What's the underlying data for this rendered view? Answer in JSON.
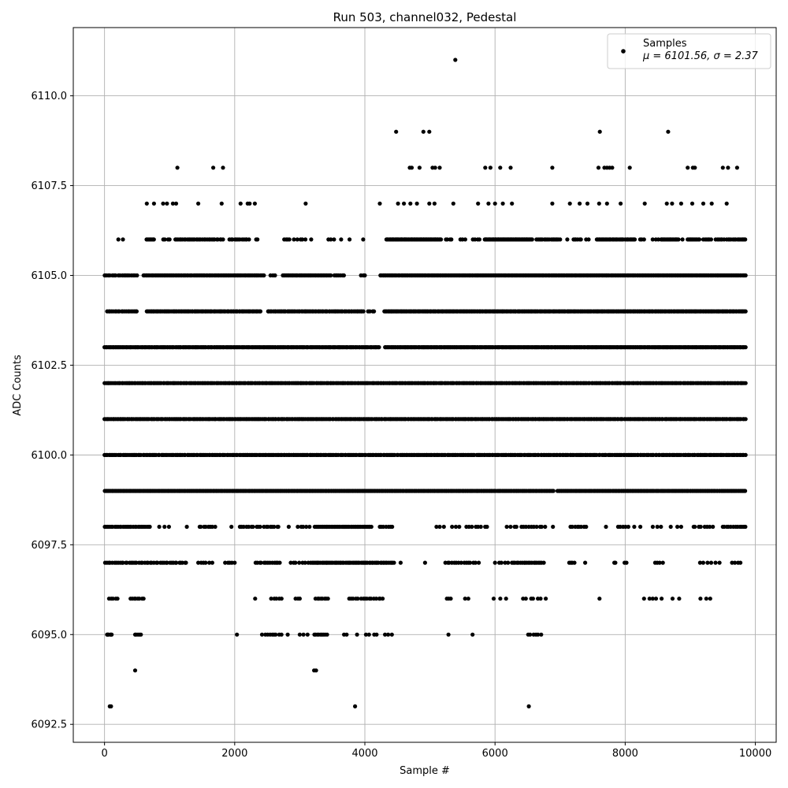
{
  "chart_data": {
    "type": "scatter",
    "title": "Run 503, channel032, Pedestal",
    "xlabel": "Sample #",
    "ylabel": "ADC Counts",
    "xlim": [
      -480,
      10320
    ],
    "ylim": [
      6092.0,
      6111.9
    ],
    "x_ticks": [
      0,
      2000,
      4000,
      6000,
      8000,
      10000
    ],
    "x_tick_labels": [
      "0",
      "2000",
      "4000",
      "6000",
      "8000",
      "10000"
    ],
    "y_ticks": [
      6092.5,
      6095.0,
      6097.5,
      6100.0,
      6102.5,
      6105.0,
      6107.5,
      6110.0
    ],
    "y_tick_labels": [
      "6092.5",
      "6095.0",
      "6097.5",
      "6100.0",
      "6102.5",
      "6105.0",
      "6107.5",
      "6110.0"
    ],
    "grid": true,
    "legend": {
      "position": "top-right",
      "label": "Samples",
      "stats": "μ = 6101.56, σ = 2.37"
    },
    "marker_color": "#000000",
    "sample_range": [
      0,
      9850
    ],
    "series": [
      {
        "name": "Samples",
        "points": [
          [
            80,
            6093
          ],
          [
            100,
            6093
          ],
          [
            3850,
            6093
          ],
          [
            6520,
            6093
          ],
          [
            470,
            6094
          ],
          [
            3220,
            6094
          ],
          [
            3250,
            6094
          ],
          [
            5390,
            6111
          ],
          [
            4480,
            6109
          ],
          [
            4900,
            6109
          ],
          [
            4990,
            6109
          ],
          [
            7610,
            6109
          ],
          [
            8660,
            6109
          ],
          [
            1120,
            6108
          ],
          [
            1670,
            6108
          ],
          [
            1820,
            6108
          ],
          [
            4690,
            6108
          ],
          [
            4720,
            6108
          ],
          [
            4840,
            6108
          ],
          [
            5040,
            6108
          ],
          [
            5080,
            6108
          ],
          [
            5150,
            6108
          ],
          [
            5850,
            6108
          ],
          [
            5930,
            6108
          ],
          [
            6080,
            6108
          ],
          [
            6240,
            6108
          ],
          [
            6880,
            6108
          ],
          [
            7590,
            6108
          ],
          [
            7680,
            6108
          ],
          [
            7720,
            6108
          ],
          [
            7760,
            6108
          ],
          [
            7800,
            6108
          ],
          [
            8070,
            6108
          ],
          [
            8960,
            6108
          ],
          [
            9040,
            6108
          ],
          [
            9070,
            6108
          ],
          [
            9500,
            6108
          ],
          [
            9580,
            6108
          ],
          [
            9720,
            6108
          ],
          [
            650,
            6107
          ],
          [
            760,
            6107
          ],
          [
            900,
            6107
          ],
          [
            960,
            6107
          ],
          [
            1050,
            6107
          ],
          [
            1100,
            6107
          ],
          [
            1440,
            6107
          ],
          [
            1800,
            6107
          ],
          [
            2090,
            6107
          ],
          [
            2200,
            6107
          ],
          [
            2230,
            6107
          ],
          [
            2310,
            6107
          ],
          [
            3090,
            6107
          ],
          [
            4230,
            6107
          ],
          [
            4510,
            6107
          ],
          [
            4600,
            6107
          ],
          [
            4700,
            6107
          ],
          [
            4800,
            6107
          ],
          [
            4990,
            6107
          ],
          [
            5070,
            6107
          ],
          [
            5360,
            6107
          ],
          [
            5740,
            6107
          ],
          [
            5900,
            6107
          ],
          [
            6000,
            6107
          ],
          [
            6120,
            6107
          ],
          [
            6260,
            6107
          ],
          [
            6880,
            6107
          ],
          [
            7150,
            6107
          ],
          [
            7300,
            6107
          ],
          [
            7420,
            6107
          ],
          [
            7600,
            6107
          ],
          [
            7720,
            6107
          ],
          [
            7930,
            6107
          ],
          [
            8300,
            6107
          ],
          [
            8640,
            6107
          ],
          [
            8720,
            6107
          ],
          [
            8860,
            6107
          ],
          [
            9030,
            6107
          ],
          [
            9200,
            6107
          ],
          [
            9330,
            6107
          ],
          [
            9560,
            6107
          ]
        ],
        "bands": [
          {
            "value": 6095,
            "segments": [
              [
                40,
                60,
                4
              ],
              [
                90,
                110,
                3
              ],
              [
                470,
                560,
                5
              ],
              [
                2030,
                2040,
                1
              ],
              [
                2420,
                2580,
                5
              ],
              [
                2600,
                2720,
                4
              ],
              [
                2800,
                2830,
                1
              ],
              [
                3000,
                3120,
                3
              ],
              [
                3220,
                3420,
                9
              ],
              [
                3680,
                3720,
                2
              ],
              [
                3870,
                3890,
                1
              ],
              [
                4000,
                4200,
                4
              ],
              [
                4310,
                4430,
                3
              ],
              [
                5280,
                5290,
                1
              ],
              [
                5650,
                5660,
                1
              ],
              [
                6510,
                6710,
                6
              ]
            ]
          },
          {
            "value": 6096,
            "segments": [
              [
                60,
                200,
                5
              ],
              [
                400,
                600,
                8
              ],
              [
                2310,
                2320,
                1
              ],
              [
                2560,
                2720,
                5
              ],
              [
                2930,
                3000,
                3
              ],
              [
                3240,
                3440,
                8
              ],
              [
                3760,
                4280,
                16
              ],
              [
                5260,
                5320,
                3
              ],
              [
                5540,
                5590,
                2
              ],
              [
                5980,
                6170,
                3
              ],
              [
                6420,
                6780,
                7
              ],
              [
                7600,
                7610,
                1
              ],
              [
                8290,
                8560,
                5
              ],
              [
                8710,
                8830,
                2
              ],
              [
                9150,
                9320,
                3
              ]
            ]
          },
          {
            "value": 6097,
            "segments": [
              [
                0,
                1260,
                44
              ],
              [
                1430,
                1660,
                6
              ],
              [
                1850,
                2000,
                5
              ],
              [
                2320,
                2700,
                13
              ],
              [
                2850,
                3180,
                8
              ],
              [
                3190,
                4450,
                60
              ],
              [
                4540,
                4560,
                1
              ],
              [
                4920,
                4930,
                1
              ],
              [
                5230,
                5700,
                14
              ],
              [
                5740,
                5760,
                1
              ],
              [
                6000,
                6200,
                5
              ],
              [
                6260,
                6750,
                20
              ],
              [
                7140,
                7220,
                4
              ],
              [
                7370,
                7400,
                1
              ],
              [
                7830,
                7850,
                2
              ],
              [
                7990,
                8020,
                2
              ],
              [
                8460,
                8580,
                4
              ],
              [
                9150,
                9450,
                6
              ],
              [
                9640,
                9770,
                4
              ]
            ]
          },
          {
            "value": 6098,
            "segments": [
              [
                0,
                700,
                28
              ],
              [
                830,
                990,
                3
              ],
              [
                1260,
                1270,
                1
              ],
              [
                1450,
                1700,
                8
              ],
              [
                1940,
                1960,
                1
              ],
              [
                2070,
                2400,
                10
              ],
              [
                2450,
                2680,
                8
              ],
              [
                2820,
                2840,
                1
              ],
              [
                2970,
                3150,
                5
              ],
              [
                3230,
                4100,
                45
              ],
              [
                4230,
                4420,
                7
              ],
              [
                5100,
                5230,
                3
              ],
              [
                5340,
                5460,
                3
              ],
              [
                5560,
                5890,
                8
              ],
              [
                6180,
                6340,
                4
              ],
              [
                6400,
                6770,
                10
              ],
              [
                6880,
                6900,
                1
              ],
              [
                7160,
                7400,
                8
              ],
              [
                7690,
                7720,
                1
              ],
              [
                7890,
                8050,
                5
              ],
              [
                8140,
                8240,
                2
              ],
              [
                8420,
                8550,
                3
              ],
              [
                8700,
                8880,
                3
              ],
              [
                9040,
                9350,
                8
              ],
              [
                9500,
                9850,
                12
              ]
            ]
          },
          {
            "value": 6099,
            "segments": [
              [
                0,
                4600,
                300
              ],
              [
                4620,
                6900,
                140
              ],
              [
                6960,
                9850,
                170
              ]
            ]
          },
          {
            "value": 6100,
            "segments": [
              [
                0,
                9850,
                420
              ]
            ]
          },
          {
            "value": 6101,
            "segments": [
              [
                0,
                9850,
                460
              ]
            ]
          },
          {
            "value": 6102,
            "segments": [
              [
                0,
                9850,
                450
              ]
            ]
          },
          {
            "value": 6103,
            "segments": [
              [
                0,
                4220,
                230
              ],
              [
                4310,
                9850,
                330
              ]
            ]
          },
          {
            "value": 6104,
            "segments": [
              [
                40,
                500,
                20
              ],
              [
                650,
                2400,
                95
              ],
              [
                2510,
                3980,
                70
              ],
              [
                4050,
                4150,
                4
              ],
              [
                4300,
                9850,
                330
              ]
            ]
          },
          {
            "value": 6105,
            "segments": [
              [
                0,
                500,
                18
              ],
              [
                600,
                2450,
                95
              ],
              [
                2550,
                2620,
                3
              ],
              [
                2740,
                3480,
                40
              ],
              [
                3530,
                3680,
                7
              ],
              [
                3940,
                4000,
                3
              ],
              [
                4240,
                9850,
                320
              ]
            ]
          },
          {
            "value": 6106,
            "segments": [
              [
                200,
                300,
                2
              ],
              [
                640,
                760,
                8
              ],
              [
                900,
                1000,
                4
              ],
              [
                1080,
                1340,
                12
              ],
              [
                1360,
                1820,
                20
              ],
              [
                1920,
                2220,
                12
              ],
              [
                2330,
                2350,
                2
              ],
              [
                2760,
                2840,
                4
              ],
              [
                2910,
                3100,
                5
              ],
              [
                3160,
                3190,
                1
              ],
              [
                3440,
                3530,
                3
              ],
              [
                3620,
                3650,
                1
              ],
              [
                3750,
                3780,
                1
              ],
              [
                3970,
                3980,
                1
              ],
              [
                4330,
                5170,
                65
              ],
              [
                5240,
                5330,
                4
              ],
              [
                5460,
                5550,
                3
              ],
              [
                5660,
                5760,
                4
              ],
              [
                5840,
                6570,
                60
              ],
              [
                6630,
                6830,
                9
              ],
              [
                6860,
                6940,
                5
              ],
              [
                6950,
                7000,
                3
              ],
              [
                7100,
                7120,
                1
              ],
              [
                7200,
                7320,
                6
              ],
              [
                7400,
                7440,
                2
              ],
              [
                7560,
                7970,
                25
              ],
              [
                8000,
                8150,
                10
              ],
              [
                8230,
                8290,
                3
              ],
              [
                8420,
                8510,
                3
              ],
              [
                8550,
                8820,
                18
              ],
              [
                8870,
                8890,
                1
              ],
              [
                8960,
                9140,
                12
              ],
              [
                9200,
                9320,
                6
              ],
              [
                9390,
                9520,
                6
              ],
              [
                9560,
                9700,
                7
              ],
              [
                9730,
                9850,
                8
              ]
            ]
          }
        ]
      }
    ]
  }
}
